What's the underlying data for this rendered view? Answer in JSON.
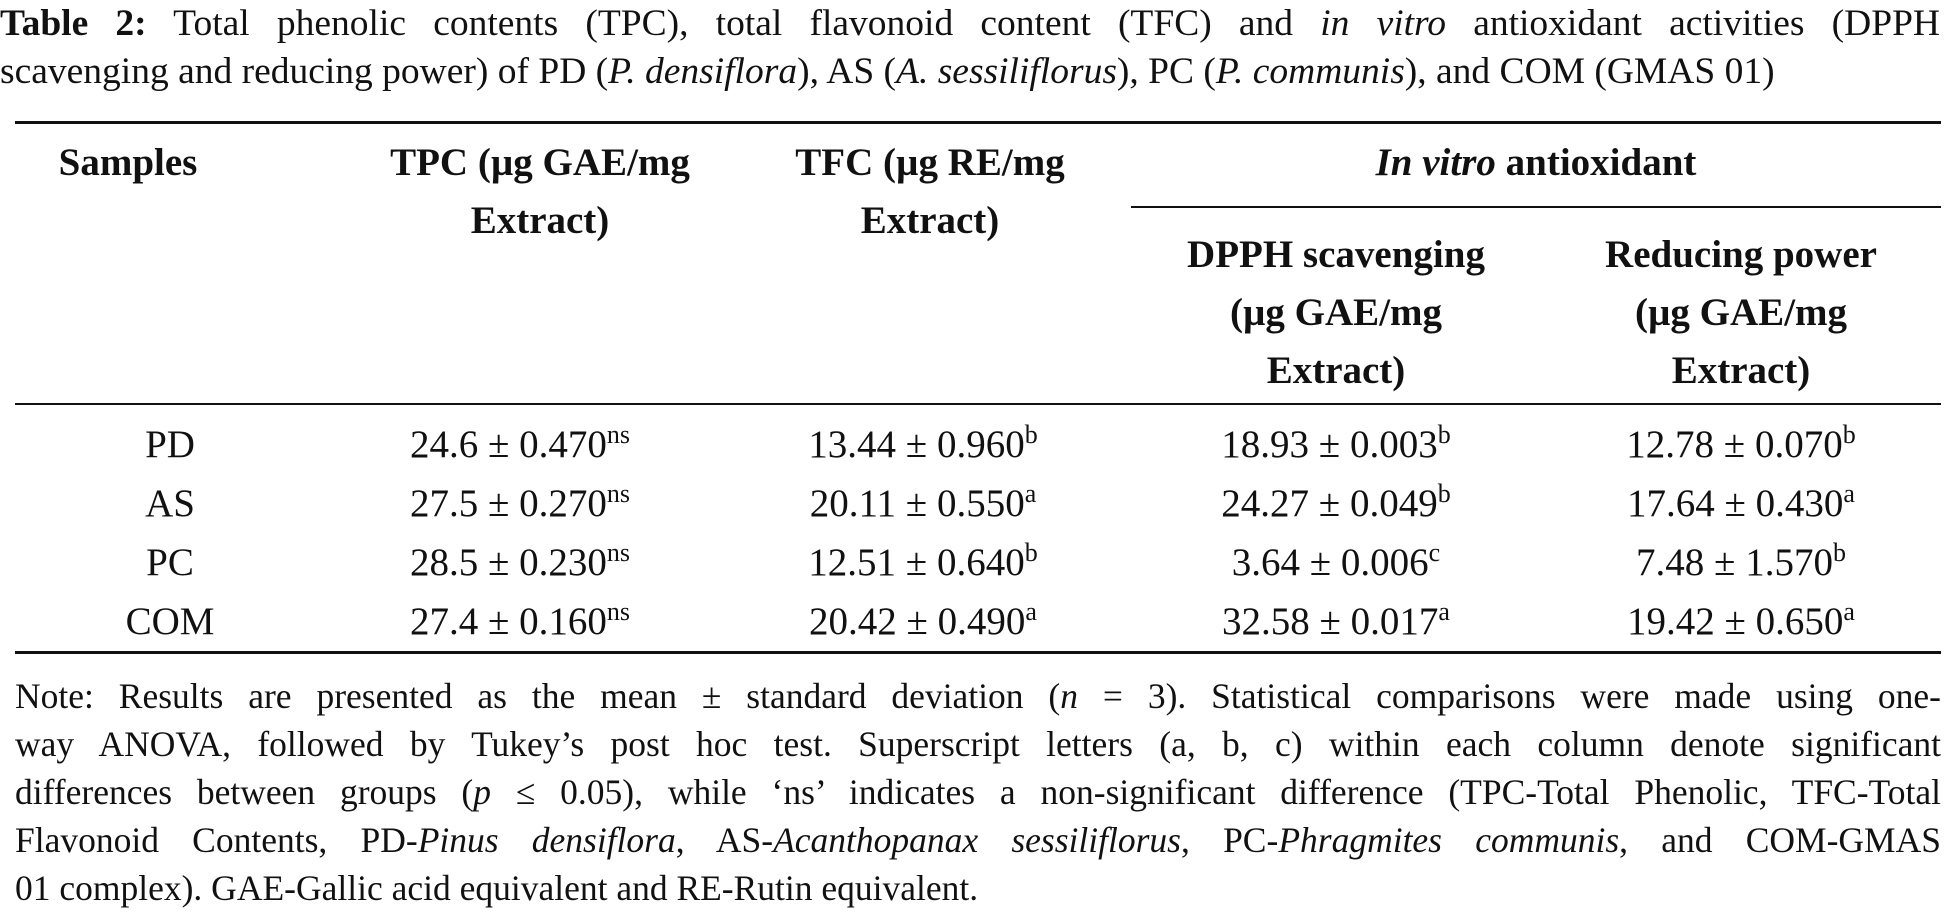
{
  "caption": {
    "label": "Table 2:",
    "line1_pre": " Total phenolic contents (TPC), total flavonoid content (TFC) and ",
    "line1_italic": "in vitro",
    "line1_post": " antioxidant activities (DPPH",
    "line2_a": "scavenging and reducing power) of PD (",
    "line2_i1": "P. densiflora",
    "line2_b": "), AS (",
    "line2_i2": "A. sessiliflorus",
    "line2_c": "), PC (",
    "line2_i3": "P. communis",
    "line2_d": "), and COM (GMAS 01)"
  },
  "headers": {
    "samples": "Samples",
    "tpc_l1": "TPC (µg GAE/mg",
    "tpc_l2": "Extract)",
    "tfc_l1": "TFC (µg RE/mg",
    "tfc_l2": "Extract)",
    "invitro_italic": "In vitro",
    "invitro_rest": " antioxidant",
    "dpph_l1": "DPPH scavenging",
    "dpph_l2": "(µg GAE/mg",
    "dpph_l3": "Extract)",
    "rp_l1": "Reducing power",
    "rp_l2": "(µg GAE/mg",
    "rp_l3": "Extract)"
  },
  "rows": [
    {
      "sample": "PD",
      "tpc": "24.6 ± 0.470",
      "tpc_sup": "ns",
      "tfc": "13.44 ± 0.960",
      "tfc_sup": "b",
      "dpph": "18.93 ± 0.003",
      "dpph_sup": "b",
      "rp": "12.78 ± 0.070",
      "rp_sup": "b"
    },
    {
      "sample": "AS",
      "tpc": "27.5 ± 0.270",
      "tpc_sup": "ns",
      "tfc": "20.11 ± 0.550",
      "tfc_sup": "a",
      "dpph": "24.27 ± 0.049",
      "dpph_sup": "b",
      "rp": "17.64 ± 0.430",
      "rp_sup": "a"
    },
    {
      "sample": "PC",
      "tpc": "28.5 ± 0.230",
      "tpc_sup": "ns",
      "tfc": "12.51 ± 0.640",
      "tfc_sup": "b",
      "dpph": "3.64 ± 0.006",
      "dpph_sup": "c",
      "rp": "7.48 ± 1.570",
      "rp_sup": "b"
    },
    {
      "sample": "COM",
      "tpc": "27.4 ± 0.160",
      "tpc_sup": "ns",
      "tfc": "20.42 ± 0.490",
      "tfc_sup": "a",
      "dpph": "32.58 ± 0.017",
      "dpph_sup": "a",
      "rp": "19.42 ± 0.650",
      "rp_sup": "a"
    }
  ],
  "note": {
    "l1_a": "Note: Results are presented as the mean ± standard deviation (",
    "l1_n": "n",
    "l1_b": " = 3). Statistical comparisons were made using one-",
    "l2": "way ANOVA, followed by Tukey’s post hoc test. Superscript letters (a, b, c) within each column denote significant",
    "l3_a": "differences between groups (",
    "l3_p": "p",
    "l3_b": " ≤ 0.05), while ‘ns’ indicates a non-significant difference (TPC-Total Phenolic, TFC-Total",
    "l4_a": "Flavonoid Contents, PD-",
    "l4_i1": "Pinus densiflora",
    "l4_b": ", AS-",
    "l4_i2": "Acanthopanax sessiliflorus",
    "l4_c": ", PC-",
    "l4_i3": "Phragmites communis",
    "l4_d": ", and COM-GMAS",
    "l5": "01 complex). GAE-Gallic acid equivalent and RE-Rutin equivalent."
  }
}
